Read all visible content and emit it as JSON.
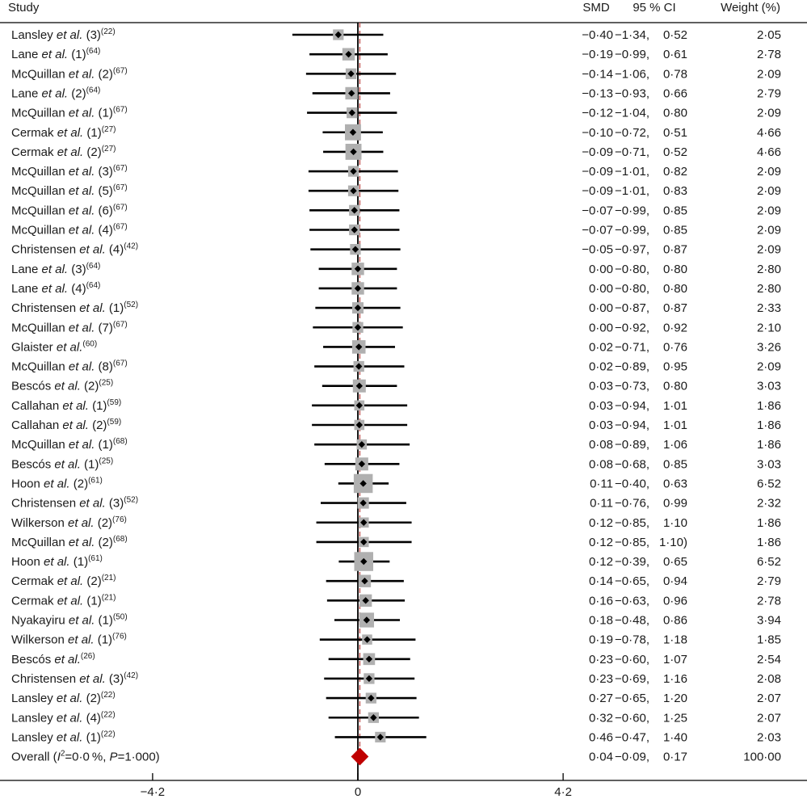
{
  "header": {
    "study": "Study",
    "smd": "SMD",
    "ci": "95 % CI",
    "weight": "Weight (%)"
  },
  "colors": {
    "diamond": "#c00000",
    "box": "#b0b0b0",
    "dash": "#c0504d",
    "line": "#000000"
  },
  "chart_data": {
    "type": "forest",
    "xlim": [
      -4.2,
      4.2
    ],
    "x_ticks": [
      -4.2,
      0,
      4.2
    ],
    "x_tick_labels": [
      "−4·2",
      "0",
      "4·2"
    ],
    "overall_dashed_line_at": 0.04,
    "studies": [
      {
        "name": "Lansley",
        "suffix": " (3)",
        "ref": "(22)",
        "smd": -0.4,
        "lo": -1.34,
        "hi": 0.52,
        "weight": 2.05,
        "smd_text": "−0·40",
        "ci_text": "−1·34, 0·52",
        "weight_text": "2·05"
      },
      {
        "name": "Lane",
        "suffix": " (1)",
        "ref": "(64)",
        "smd": -0.19,
        "lo": -0.99,
        "hi": 0.61,
        "weight": 2.78,
        "smd_text": "−0·19",
        "ci_text": "−0·99, 0·61",
        "weight_text": "2·78"
      },
      {
        "name": "McQuillan",
        "suffix": " (2)",
        "ref": "(67)",
        "smd": -0.14,
        "lo": -1.06,
        "hi": 0.78,
        "weight": 2.09,
        "smd_text": "−0·14",
        "ci_text": "−1·06, 0·78",
        "weight_text": "2·09"
      },
      {
        "name": "Lane",
        "suffix": " (2)",
        "ref": "(64)",
        "smd": -0.13,
        "lo": -0.93,
        "hi": 0.66,
        "weight": 2.79,
        "smd_text": "−0·13",
        "ci_text": "−0·93, 0·66",
        "weight_text": "2·79"
      },
      {
        "name": "McQuillan",
        "suffix": " (1)",
        "ref": "(67)",
        "smd": -0.12,
        "lo": -1.04,
        "hi": 0.8,
        "weight": 2.09,
        "smd_text": "−0·12",
        "ci_text": "−1·04, 0·80",
        "weight_text": "2·09"
      },
      {
        "name": "Cermak",
        "suffix": " (1)",
        "ref": "(27)",
        "smd": -0.1,
        "lo": -0.72,
        "hi": 0.51,
        "weight": 4.66,
        "smd_text": "−0·10",
        "ci_text": "−0·72, 0·51",
        "weight_text": "4·66"
      },
      {
        "name": "Cermak",
        "suffix": " (2)",
        "ref": "(27)",
        "smd": -0.09,
        "lo": -0.71,
        "hi": 0.52,
        "weight": 4.66,
        "smd_text": "−0·09",
        "ci_text": "−0·71, 0·52",
        "weight_text": "4·66"
      },
      {
        "name": "McQuillan",
        "suffix": " (3)",
        "ref": "(67)",
        "smd": -0.09,
        "lo": -1.01,
        "hi": 0.82,
        "weight": 2.09,
        "smd_text": "−0·09",
        "ci_text": "−1·01, 0·82",
        "weight_text": "2·09"
      },
      {
        "name": "McQuillan",
        "suffix": " (5)",
        "ref": "(67)",
        "smd": -0.09,
        "lo": -1.01,
        "hi": 0.83,
        "weight": 2.09,
        "smd_text": "−0·09",
        "ci_text": "−1·01, 0·83",
        "weight_text": "2·09"
      },
      {
        "name": "McQuillan",
        "suffix": " (6)",
        "ref": "(67)",
        "smd": -0.07,
        "lo": -0.99,
        "hi": 0.85,
        "weight": 2.09,
        "smd_text": "−0·07",
        "ci_text": "−0·99, 0·85",
        "weight_text": "2·09"
      },
      {
        "name": "McQuillan",
        "suffix": " (4)",
        "ref": "(67)",
        "smd": -0.07,
        "lo": -0.99,
        "hi": 0.85,
        "weight": 2.09,
        "smd_text": "−0·07",
        "ci_text": "−0·99, 0·85",
        "weight_text": "2·09"
      },
      {
        "name": "Christensen",
        "suffix": " (4)",
        "ref": "(42)",
        "smd": -0.05,
        "lo": -0.97,
        "hi": 0.87,
        "weight": 2.09,
        "smd_text": "−0·05",
        "ci_text": "−0·97, 0·87",
        "weight_text": "2·09"
      },
      {
        "name": "Lane",
        "suffix": " (3)",
        "ref": "(64)",
        "smd": 0.0,
        "lo": -0.8,
        "hi": 0.8,
        "weight": 2.8,
        "smd_text": "0·00",
        "ci_text": "−0·80, 0·80",
        "weight_text": "2·80"
      },
      {
        "name": "Lane",
        "suffix": " (4)",
        "ref": "(64)",
        "smd": 0.0,
        "lo": -0.8,
        "hi": 0.8,
        "weight": 2.8,
        "smd_text": "0·00",
        "ci_text": "−0·80, 0·80",
        "weight_text": "2·80"
      },
      {
        "name": "Christensen",
        "suffix": " (1)",
        "ref": "(52)",
        "smd": 0.0,
        "lo": -0.87,
        "hi": 0.87,
        "weight": 2.33,
        "smd_text": "0·00",
        "ci_text": "−0·87, 0·87",
        "weight_text": "2·33"
      },
      {
        "name": "McQuillan",
        "suffix": " (7)",
        "ref": "(67)",
        "smd": 0.0,
        "lo": -0.92,
        "hi": 0.92,
        "weight": 2.1,
        "smd_text": "0·00",
        "ci_text": "−0·92, 0·92",
        "weight_text": "2·10"
      },
      {
        "name": "Glaister",
        "suffix": "",
        "ref": "(60)",
        "smd": 0.02,
        "lo": -0.71,
        "hi": 0.76,
        "weight": 3.26,
        "smd_text": "0·02",
        "ci_text": "−0·71, 0·76",
        "weight_text": "3·26"
      },
      {
        "name": "McQuillan",
        "suffix": " (8)",
        "ref": "(67)",
        "smd": 0.02,
        "lo": -0.89,
        "hi": 0.95,
        "weight": 2.09,
        "smd_text": "0·02",
        "ci_text": "−0·89, 0·95",
        "weight_text": "2·09"
      },
      {
        "name": "Bescós",
        "suffix": " (2)",
        "ref": "(25)",
        "smd": 0.03,
        "lo": -0.73,
        "hi": 0.8,
        "weight": 3.03,
        "smd_text": "0·03",
        "ci_text": "−0·73, 0·80",
        "weight_text": "3·03"
      },
      {
        "name": "Callahan",
        "suffix": " (1)",
        "ref": "(59)",
        "smd": 0.03,
        "lo": -0.94,
        "hi": 1.01,
        "weight": 1.86,
        "smd_text": "0·03",
        "ci_text": "−0·94, 1·01",
        "weight_text": "1·86"
      },
      {
        "name": "Callahan",
        "suffix": " (2)",
        "ref": "(59)",
        "smd": 0.03,
        "lo": -0.94,
        "hi": 1.01,
        "weight": 1.86,
        "smd_text": "0·03",
        "ci_text": "−0·94, 1·01",
        "weight_text": "1·86"
      },
      {
        "name": "McQuillan",
        "suffix": " (1)",
        "ref": "(68)",
        "smd": 0.08,
        "lo": -0.89,
        "hi": 1.06,
        "weight": 1.86,
        "smd_text": "0·08",
        "ci_text": "−0·89, 1·06",
        "weight_text": "1·86"
      },
      {
        "name": "Bescós",
        "suffix": " (1)",
        "ref": "(25)",
        "smd": 0.08,
        "lo": -0.68,
        "hi": 0.85,
        "weight": 3.03,
        "smd_text": "0·08",
        "ci_text": "−0·68, 0·85",
        "weight_text": "3·03"
      },
      {
        "name": "Hoon",
        "suffix": " (2)",
        "ref": "(61)",
        "smd": 0.11,
        "lo": -0.4,
        "hi": 0.63,
        "weight": 6.52,
        "smd_text": "0·11",
        "ci_text": "−0·40, 0·63",
        "weight_text": "6·52"
      },
      {
        "name": "Christensen",
        "suffix": " (3)",
        "ref": "(52)",
        "smd": 0.11,
        "lo": -0.76,
        "hi": 0.99,
        "weight": 2.32,
        "smd_text": "0·11",
        "ci_text": "−0·76, 0·99",
        "weight_text": "2·32"
      },
      {
        "name": "Wilkerson",
        "suffix": " (2)",
        "ref": "(76)",
        "smd": 0.12,
        "lo": -0.85,
        "hi": 1.1,
        "weight": 1.86,
        "smd_text": "0·12",
        "ci_text": "−0·85, 1·10",
        "weight_text": "1·86"
      },
      {
        "name": "McQuillan",
        "suffix": " (2)",
        "ref": "(68)",
        "smd": 0.12,
        "lo": -0.85,
        "hi": 1.1,
        "weight": 1.86,
        "smd_text": "0·12",
        "ci_text": "−0·85, 1·10)",
        "weight_text": "1·86"
      },
      {
        "name": "Hoon",
        "suffix": " (1)",
        "ref": "(61)",
        "smd": 0.12,
        "lo": -0.39,
        "hi": 0.65,
        "weight": 6.52,
        "smd_text": "0·12",
        "ci_text": "−0·39, 0·65",
        "weight_text": "6·52"
      },
      {
        "name": "Cermak",
        "suffix": " (2)",
        "ref": "(21)",
        "smd": 0.14,
        "lo": -0.65,
        "hi": 0.94,
        "weight": 2.79,
        "smd_text": "0·14",
        "ci_text": "−0·65, 0·94",
        "weight_text": "2·79"
      },
      {
        "name": "Cermak",
        "suffix": " (1)",
        "ref": "(21)",
        "smd": 0.16,
        "lo": -0.63,
        "hi": 0.96,
        "weight": 2.78,
        "smd_text": "0·16",
        "ci_text": "−0·63, 0·96",
        "weight_text": "2·78"
      },
      {
        "name": "Nyakayiru",
        "suffix": " (1)",
        "ref": "(50)",
        "smd": 0.18,
        "lo": -0.48,
        "hi": 0.86,
        "weight": 3.94,
        "smd_text": "0·18",
        "ci_text": "−0·48, 0·86",
        "weight_text": "3·94"
      },
      {
        "name": "Wilkerson",
        "suffix": " (1)",
        "ref": "(76)",
        "smd": 0.19,
        "lo": -0.78,
        "hi": 1.18,
        "weight": 1.85,
        "smd_text": "0·19",
        "ci_text": "−0·78, 1·18",
        "weight_text": "1·85"
      },
      {
        "name": "Bescós",
        "suffix": "",
        "ref": "(26)",
        "smd": 0.23,
        "lo": -0.6,
        "hi": 1.07,
        "weight": 2.54,
        "smd_text": "0·23",
        "ci_text": "−0·60, 1·07",
        "weight_text": "2·54"
      },
      {
        "name": "Christensen",
        "suffix": " (3)",
        "ref": "(42)",
        "smd": 0.23,
        "lo": -0.69,
        "hi": 1.16,
        "weight": 2.08,
        "smd_text": "0·23",
        "ci_text": "−0·69, 1·16",
        "weight_text": "2·08"
      },
      {
        "name": "Lansley",
        "suffix": " (2)",
        "ref": "(22)",
        "smd": 0.27,
        "lo": -0.65,
        "hi": 1.2,
        "weight": 2.07,
        "smd_text": "0·27",
        "ci_text": "−0·65, 1·20",
        "weight_text": "2·07"
      },
      {
        "name": "Lansley",
        "suffix": " (4)",
        "ref": "(22)",
        "smd": 0.32,
        "lo": -0.6,
        "hi": 1.25,
        "weight": 2.07,
        "smd_text": "0·32",
        "ci_text": "−0·60, 1·25",
        "weight_text": "2·07"
      },
      {
        "name": "Lansley",
        "suffix": " (1)",
        "ref": "(22)",
        "smd": 0.46,
        "lo": -0.47,
        "hi": 1.4,
        "weight": 2.03,
        "smd_text": "0·46",
        "ci_text": "−0·47, 1·40",
        "weight_text": "2·03"
      }
    ],
    "overall": {
      "label_prefix": "Overall (",
      "i2_symbol": "I",
      "i2_sup": "2",
      "i2_value": "=0·0 %, ",
      "p_symbol": "P",
      "p_value": "=1·000)",
      "smd": 0.04,
      "lo": -0.09,
      "hi": 0.17,
      "weight": 100.0,
      "smd_text": "0·04",
      "ci_text": "−0·09, 0·17",
      "weight_text": "100·00"
    }
  }
}
